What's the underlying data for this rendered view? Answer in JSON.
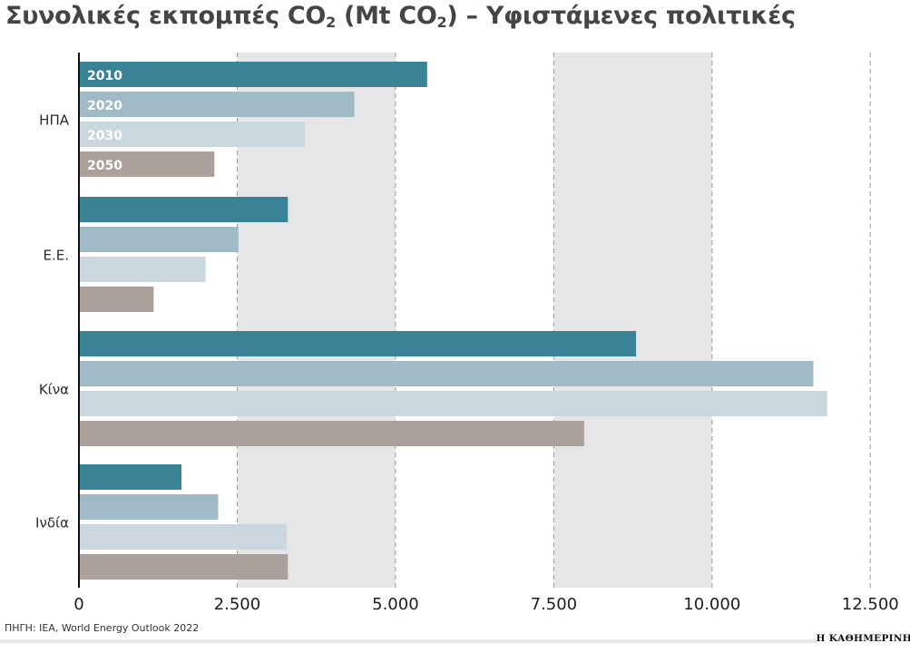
{
  "title": {
    "part1": "Συνολικές εκπομπές CO",
    "sub1": "2",
    "part2": " (Mt CO",
    "sub2": "2",
    "part3": ") – Υφιστάμενες πολιτικές"
  },
  "source": "ΠΗΓΗ: IEA, World Energy Outlook 2022",
  "publisher": "Η ΚΑΘΗΜΕΡΙΝΗ",
  "colors": {
    "y2010": "#3a8296",
    "y2020": "#a1bbc6",
    "y2030": "#cbd7df",
    "y2050": "#aba09b",
    "band": "#e6e6e9",
    "gridline": "#9a9a9a",
    "axis": "#111111"
  },
  "chart_data": {
    "type": "bar",
    "orientation": "horizontal",
    "categories": [
      "ΗΠΑ",
      "Ε.Ε.",
      "Κίνα",
      "Ινδία"
    ],
    "series": [
      {
        "name": "2010",
        "values": [
          5500,
          3300,
          8800,
          1620
        ]
      },
      {
        "name": "2020",
        "values": [
          4350,
          2520,
          11600,
          2200
        ]
      },
      {
        "name": "2030",
        "values": [
          3570,
          2000,
          11820,
          3280
        ]
      },
      {
        "name": "2050",
        "values": [
          2140,
          1180,
          7980,
          3300
        ]
      }
    ],
    "xlim": [
      0,
      12500
    ],
    "xticks": [
      0,
      2500,
      5000,
      7500,
      10000,
      12500
    ],
    "xtick_labels": [
      "0",
      "2.500",
      "5.000",
      "7.500",
      "10.000",
      "12.500"
    ],
    "shaded_bands": [
      [
        2500,
        5000
      ],
      [
        7500,
        10000
      ]
    ],
    "grid": true,
    "legend": "inside first group bars"
  }
}
